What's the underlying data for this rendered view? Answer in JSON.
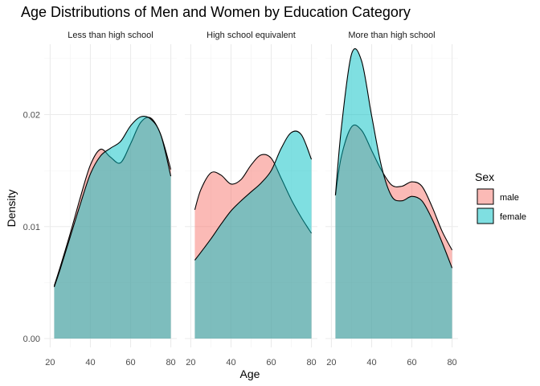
{
  "chart_data": {
    "type": "area",
    "subtype": "density",
    "title": "Age Distributions of Men and Women by Education Category",
    "xlabel": "Age",
    "ylabel": "Density",
    "xlim": [
      20,
      80
    ],
    "ylim": [
      0,
      0.0265
    ],
    "x_ticks": [
      20,
      40,
      60,
      80
    ],
    "x_tick_labels": [
      "20",
      "40",
      "60",
      "80"
    ],
    "y_ticks": [
      0.0,
      0.01,
      0.02
    ],
    "y_tick_labels": [
      "0.00",
      "0.01",
      "0.02"
    ],
    "grid": true,
    "legend": {
      "title": "Sex",
      "position": "right",
      "entries": [
        {
          "label": "male",
          "color": "#F8766D"
        },
        {
          "label": "female",
          "color": "#00BFC4"
        }
      ]
    },
    "colors": {
      "male": "#F8766D",
      "female": "#00BFC4",
      "overlap": "#8AAFAA"
    },
    "x": [
      22,
      25,
      30,
      35,
      40,
      45,
      50,
      55,
      60,
      65,
      70,
      75,
      80
    ],
    "panels": [
      {
        "name": "Less than high school",
        "series": [
          {
            "name": "male",
            "values": [
              0.0047,
              0.0064,
              0.0094,
              0.0126,
              0.0155,
              0.0169,
              0.0162,
              0.0157,
              0.0174,
              0.0193,
              0.0197,
              0.0182,
              0.0151
            ]
          },
          {
            "name": "female",
            "values": [
              0.0046,
              0.0062,
              0.0091,
              0.012,
              0.0147,
              0.0163,
              0.017,
              0.0176,
              0.019,
              0.0198,
              0.0196,
              0.0182,
              0.0145
            ]
          }
        ]
      },
      {
        "name": "High school equivalent",
        "series": [
          {
            "name": "male",
            "values": [
              0.0115,
              0.0133,
              0.0148,
              0.0146,
              0.0138,
              0.0142,
              0.0155,
              0.0164,
              0.0161,
              0.0143,
              0.0124,
              0.0108,
              0.0094
            ]
          },
          {
            "name": "female",
            "values": [
              0.007,
              0.0077,
              0.0089,
              0.0102,
              0.0114,
              0.0123,
              0.0131,
              0.0139,
              0.015,
              0.017,
              0.0184,
              0.0182,
              0.016
            ]
          }
        ]
      },
      {
        "name": "More than high school",
        "series": [
          {
            "name": "male",
            "values": [
              0.0128,
              0.0163,
              0.0189,
              0.0186,
              0.0168,
              0.015,
              0.0137,
              0.0136,
              0.014,
              0.0136,
              0.0118,
              0.0096,
              0.0079
            ]
          },
          {
            "name": "female",
            "values": [
              0.0128,
              0.0189,
              0.0254,
              0.0248,
              0.0199,
              0.0153,
              0.0127,
              0.0123,
              0.0127,
              0.0123,
              0.0107,
              0.0086,
              0.0063
            ]
          }
        ]
      }
    ]
  }
}
